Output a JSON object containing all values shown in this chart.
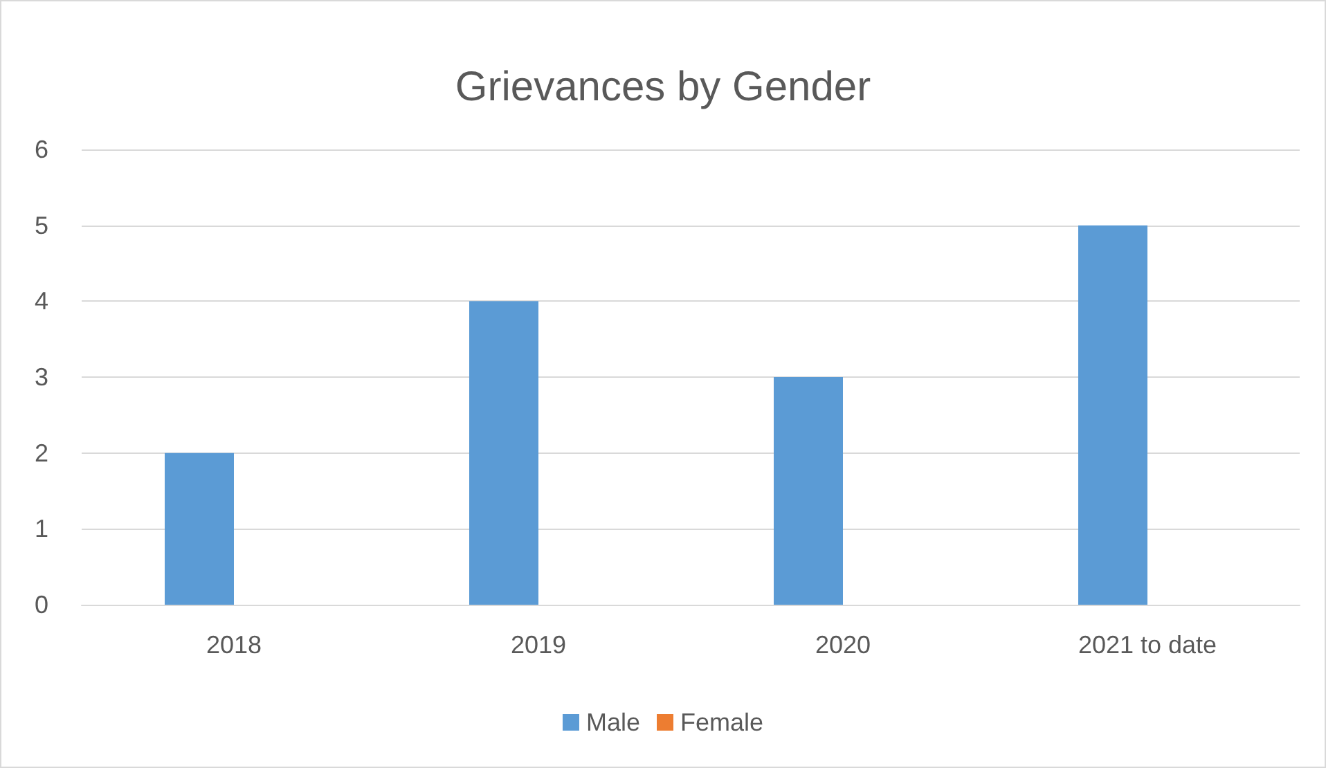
{
  "chart_data": {
    "type": "bar",
    "title": "Grievances by Gender",
    "categories": [
      "2018",
      "2019",
      "2020",
      "2021 to date"
    ],
    "series": [
      {
        "name": "Male",
        "color": "#5b9bd5",
        "values": [
          2,
          4,
          3,
          5
        ]
      },
      {
        "name": "Female",
        "color": "#ed7d31",
        "values": [
          0,
          0,
          0,
          0
        ]
      }
    ],
    "ylim": [
      0,
      6
    ],
    "yticks": [
      0,
      1,
      2,
      3,
      4,
      5,
      6
    ],
    "grid": "y",
    "legend": "bottom"
  }
}
